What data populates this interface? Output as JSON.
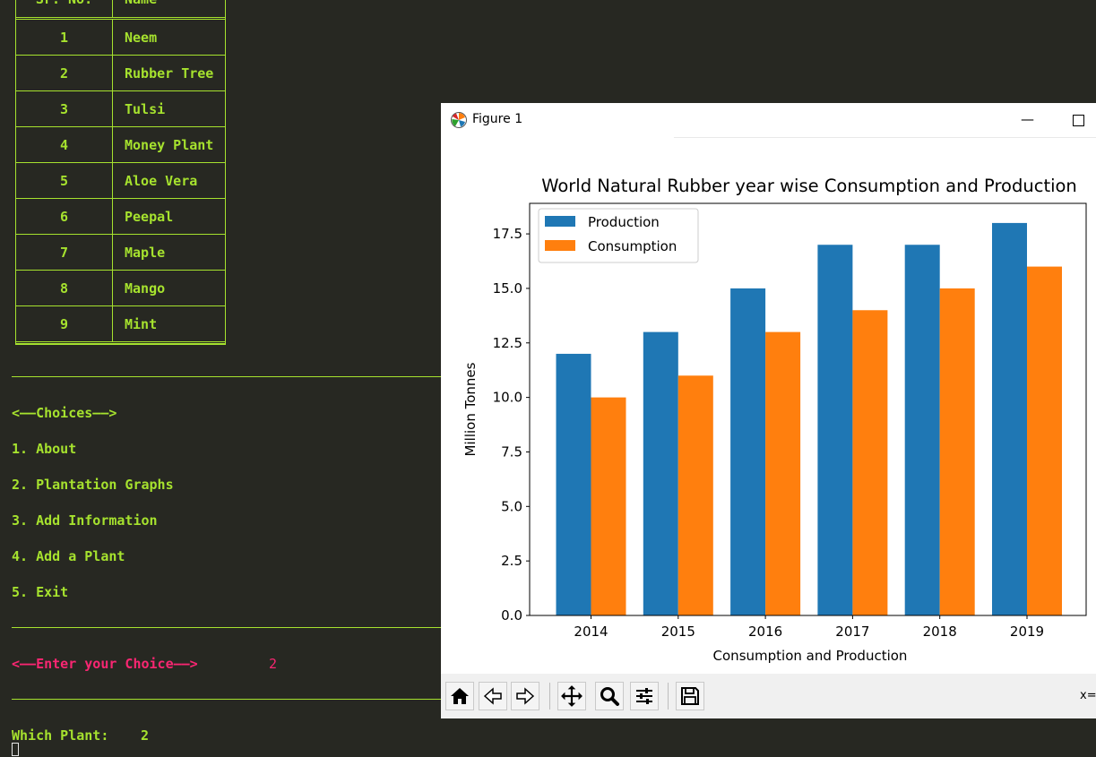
{
  "terminal": {
    "table": {
      "headers": [
        "Sr. No.",
        "Name"
      ],
      "rows": [
        {
          "no": "1",
          "name": "Neem"
        },
        {
          "no": "2",
          "name": "Rubber Tree"
        },
        {
          "no": "3",
          "name": "Tulsi"
        },
        {
          "no": "4",
          "name": "Money Plant"
        },
        {
          "no": "5",
          "name": "Aloe Vera"
        },
        {
          "no": "6",
          "name": "Peepal"
        },
        {
          "no": "7",
          "name": "Maple"
        },
        {
          "no": "8",
          "name": "Mango"
        },
        {
          "no": "9",
          "name": "Mint"
        }
      ]
    },
    "choices_header": "<——Choices——>",
    "choices": [
      "1. About",
      "2. Plantation Graphs",
      "3. Add Information",
      "4. Add a Plant",
      "5. Exit"
    ],
    "prompt_label": "<——Enter your Choice——>",
    "prompt_value": "2",
    "plant_label": "Which Plant:",
    "plant_value": "2"
  },
  "window": {
    "title": "Figure 1",
    "minimize_glyph": "—",
    "coords_label": "x="
  },
  "toolbar": {
    "buttons": [
      "home-icon",
      "back-icon",
      "forward-icon",
      "pan-icon",
      "zoom-icon",
      "configure-subplots-icon",
      "save-icon"
    ]
  },
  "chart_data": {
    "type": "bar",
    "title": "World Natural Rubber year wise Consumption and Production",
    "xlabel": "Consumption and Production",
    "ylabel": "Million Tonnes",
    "categories": [
      "2014",
      "2015",
      "2016",
      "2017",
      "2018",
      "2019"
    ],
    "series": [
      {
        "name": "Production",
        "values": [
          12,
          13,
          15,
          17,
          17,
          18
        ],
        "color": "#1f77b4"
      },
      {
        "name": "Consumption",
        "values": [
          10,
          11,
          13,
          14,
          15,
          16
        ],
        "color": "#ff7f0e"
      }
    ],
    "ylim": [
      0,
      18.9
    ],
    "yticks": [
      "0.0",
      "2.5",
      "5.0",
      "7.5",
      "10.0",
      "12.5",
      "15.0",
      "17.5"
    ],
    "legend_position": "top-left",
    "grid": false
  }
}
